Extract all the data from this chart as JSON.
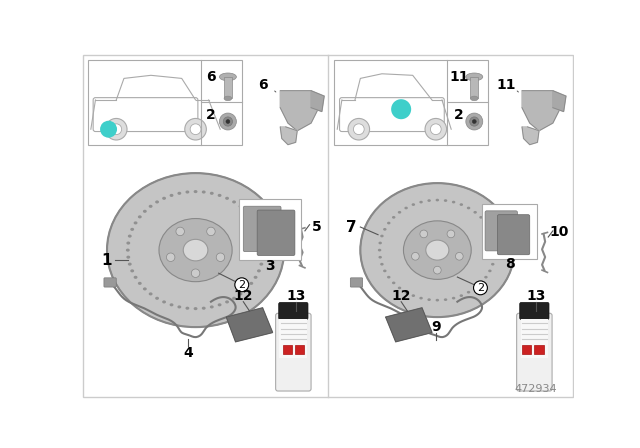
{
  "part_number": "472934",
  "bg_color": "#ffffff",
  "teal_color": "#3ecfca",
  "divider_color": "#cccccc",
  "border_color": "#cccccc",
  "disc_outer_color": "#b8b8b8",
  "disc_rim_color": "#d0d0d0",
  "disc_hub_color": "#c0c0c0",
  "disc_shadow": "#909090",
  "part_label_fs": 11,
  "circled_fs": 9,
  "small_fs": 9
}
